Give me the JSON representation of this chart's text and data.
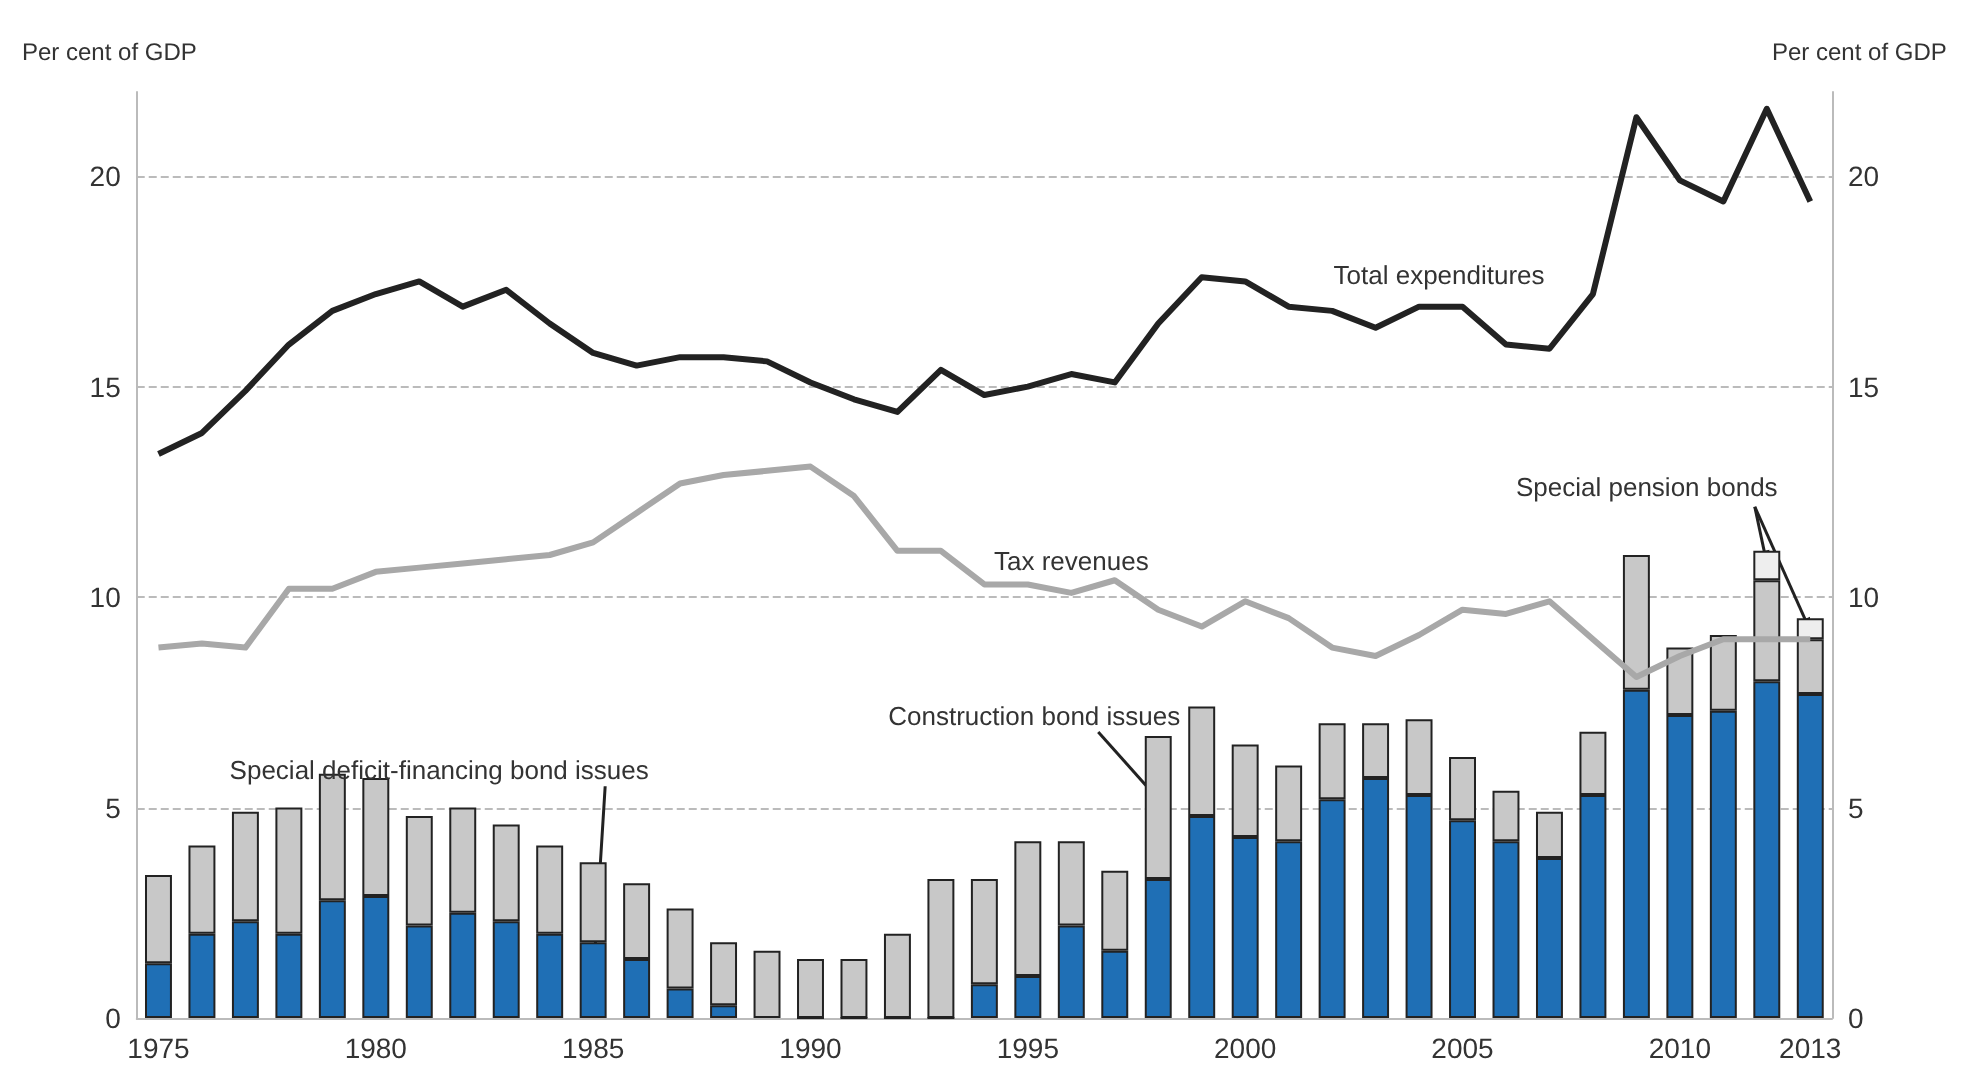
{
  "chart_data": {
    "type": "bar",
    "stacked": true,
    "ylabel": "Per cent of GDP",
    "y2label": "Per cent of GDP",
    "categories": [
      "1975",
      null,
      null,
      null,
      null,
      "1980",
      null,
      null,
      null,
      null,
      "1985",
      null,
      null,
      null,
      null,
      "1990",
      null,
      null,
      null,
      null,
      "1995",
      null,
      null,
      null,
      null,
      "2000",
      null,
      null,
      null,
      null,
      "2005",
      null,
      null,
      null,
      null,
      "2010",
      null,
      null,
      "2013"
    ],
    "ylim": [
      0,
      22
    ],
    "yticks": [
      0,
      5,
      10,
      15,
      20
    ],
    "y2lim": [
      0,
      22
    ],
    "y2ticks": [
      0,
      5,
      10,
      15,
      20
    ],
    "grid": "y",
    "legend": false,
    "series": [
      {
        "name": "Special deficit-financing bond issues",
        "color": "#1f6fb5",
        "values": [
          1.3,
          2.0,
          2.3,
          2.0,
          2.8,
          2.9,
          2.2,
          2.5,
          2.3,
          2.0,
          1.8,
          1.4,
          0.7,
          0.3,
          null,
          0,
          0,
          0,
          0,
          0.8,
          1.0,
          2.2,
          1.6,
          3.3,
          4.8,
          4.3,
          4.2,
          5.2,
          5.7,
          5.3,
          4.7,
          4.2,
          3.8,
          5.3,
          7.8,
          7.2,
          7.3,
          8.0,
          7.7
        ]
      },
      {
        "name": "Construction bond issues",
        "color": "#c8c8c8",
        "values": [
          2.1,
          2.1,
          2.6,
          3.0,
          3.0,
          2.8,
          2.6,
          2.5,
          2.3,
          2.1,
          1.9,
          1.8,
          1.9,
          1.5,
          1.6,
          1.4,
          1.4,
          2.0,
          3.3,
          2.5,
          3.2,
          2.0,
          1.9,
          3.4,
          2.6,
          2.2,
          1.8,
          1.8,
          1.3,
          1.8,
          1.5,
          1.2,
          1.1,
          1.5,
          3.2,
          1.6,
          1.8,
          2.4,
          1.3
        ]
      },
      {
        "name": "Special pension bonds",
        "color": "#eeeeee",
        "values": [
          null,
          null,
          null,
          null,
          null,
          null,
          null,
          null,
          null,
          null,
          null,
          null,
          null,
          null,
          null,
          null,
          null,
          null,
          null,
          null,
          null,
          null,
          null,
          null,
          null,
          null,
          null,
          null,
          null,
          null,
          null,
          null,
          null,
          null,
          null,
          null,
          null,
          0.7,
          0.5
        ]
      },
      {
        "type": "line",
        "name": "Total expenditures",
        "color": "#222222",
        "values": [
          13.4,
          13.9,
          14.9,
          16.0,
          16.8,
          17.2,
          17.5,
          16.9,
          17.3,
          16.5,
          15.8,
          15.5,
          15.7,
          15.7,
          15.6,
          15.1,
          14.7,
          14.4,
          15.4,
          14.8,
          15.0,
          15.3,
          15.1,
          16.5,
          17.6,
          17.5,
          16.9,
          16.8,
          16.4,
          16.9,
          16.9,
          16.0,
          15.9,
          17.2,
          21.4,
          19.9,
          19.4,
          21.6,
          19.4
        ]
      },
      {
        "type": "line",
        "name": "Tax revenues",
        "color": "#a8a8a8",
        "values": [
          8.8,
          8.9,
          8.8,
          10.2,
          10.2,
          10.6,
          10.7,
          10.8,
          10.9,
          11.0,
          11.3,
          12.0,
          12.7,
          12.9,
          13.0,
          13.1,
          12.4,
          11.1,
          11.1,
          10.3,
          10.3,
          10.1,
          10.4,
          9.7,
          9.3,
          9.9,
          9.5,
          8.8,
          8.6,
          9.1,
          9.7,
          9.6,
          9.9,
          9.0,
          8.1,
          8.6,
          9.0,
          9.0,
          9.0
        ]
      }
    ]
  }
}
